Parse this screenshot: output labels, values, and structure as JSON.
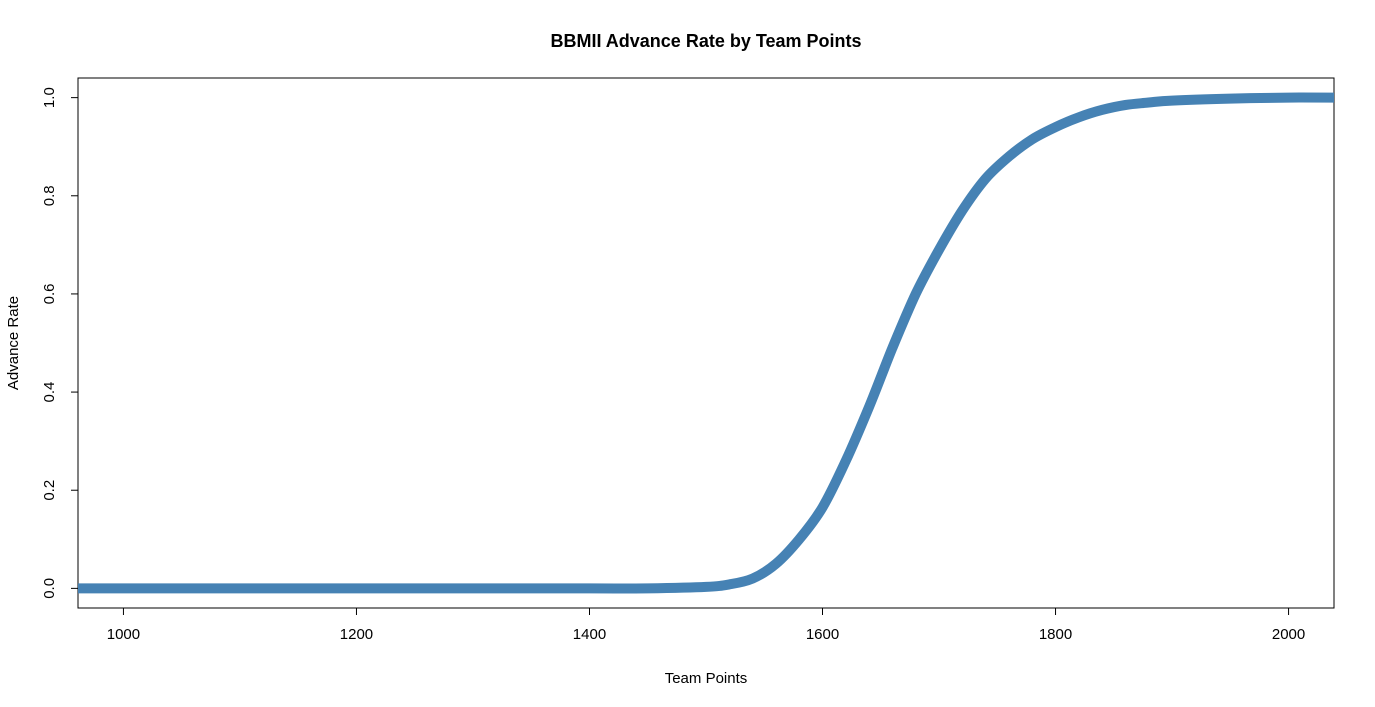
{
  "chart_data": {
    "type": "line",
    "title": "BBMII Advance Rate by Team Points",
    "xlabel": "Team Points",
    "ylabel": "Advance Rate",
    "xlim": [
      961,
      2039
    ],
    "ylim": [
      -0.04,
      1.04
    ],
    "xticks": [
      1000,
      1200,
      1400,
      1600,
      1800,
      2000
    ],
    "yticks": [
      0.0,
      0.2,
      0.4,
      0.6,
      0.8,
      1.0
    ],
    "xtick_labels": [
      "1000",
      "1200",
      "1400",
      "1600",
      "1800",
      "2000"
    ],
    "ytick_labels": [
      "0.0",
      "0.2",
      "0.4",
      "0.6",
      "0.8",
      "1.0"
    ],
    "grid": false,
    "legend": "none",
    "line_color": "#4682b4",
    "series": [
      {
        "x": [
          961,
          1000,
          1100,
          1200,
          1300,
          1400,
          1450,
          1500,
          1520,
          1540,
          1560,
          1580,
          1600,
          1620,
          1640,
          1660,
          1680,
          1700,
          1720,
          1740,
          1760,
          1780,
          1800,
          1820,
          1840,
          1860,
          1880,
          1900,
          1950,
          2000,
          2039
        ],
        "y": [
          0.0,
          0.0,
          0.0,
          0.0,
          0.0,
          0.0,
          0.0,
          0.003,
          0.008,
          0.02,
          0.05,
          0.1,
          0.165,
          0.26,
          0.37,
          0.49,
          0.6,
          0.69,
          0.77,
          0.835,
          0.88,
          0.915,
          0.94,
          0.96,
          0.975,
          0.985,
          0.99,
          0.994,
          0.998,
          1.0,
          1.0
        ]
      }
    ]
  }
}
